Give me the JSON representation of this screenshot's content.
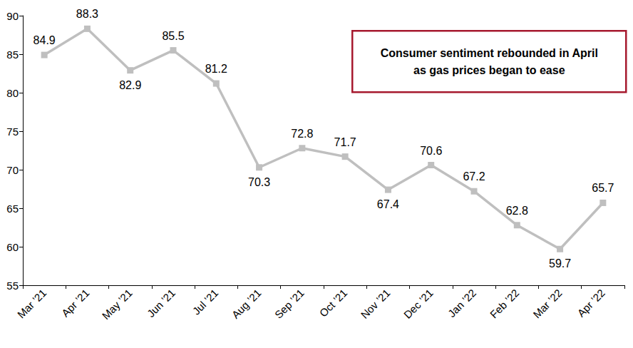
{
  "chart_data": {
    "type": "line",
    "annotation": "Consumer sentiment rebounded in April\nas gas prices began to ease",
    "categories": [
      "Mar ’21",
      "Apr ’21",
      "May ’21",
      "Jun ’21",
      "Jul ’21",
      "Aug ’21",
      "Sep ’21",
      "Oct ’21",
      "Nov ’21",
      "Dec ’21",
      "Jan ’22",
      "Feb ’22",
      "Mar ’22",
      "Apr ’22"
    ],
    "values": [
      84.9,
      88.3,
      82.9,
      85.5,
      81.2,
      70.3,
      72.8,
      71.7,
      67.4,
      70.6,
      67.2,
      62.8,
      59.7,
      65.7
    ],
    "color": "#bfbfbf",
    "marker": "square",
    "ylim": [
      55,
      90
    ],
    "yticks": [
      55,
      60,
      65,
      70,
      75,
      80,
      85,
      90
    ],
    "grid": false,
    "data_labels": true
  }
}
